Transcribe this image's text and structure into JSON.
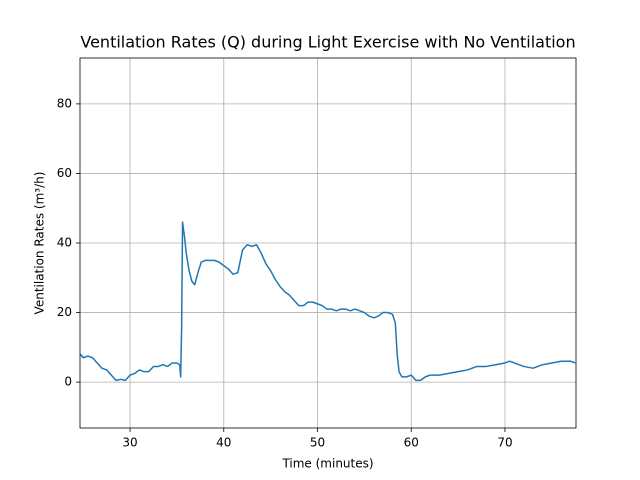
{
  "chart_data": {
    "type": "line",
    "title": "Ventilation Rates (Q) during Light Exercise with No Ventilation",
    "xlabel": "Time (minutes)",
    "ylabel": "Ventilation Rates (m³/h)",
    "x": [
      24.7,
      25,
      25.5,
      26,
      26.5,
      27,
      27.5,
      28,
      28.5,
      29,
      29.5,
      30,
      30.5,
      31,
      31.5,
      32,
      32.5,
      33,
      33.5,
      34,
      34.5,
      35,
      35.3,
      35.4,
      35.5,
      35.6,
      35.8,
      36,
      36.3,
      36.6,
      36.9,
      37.3,
      37.6,
      38,
      38.5,
      39,
      39.5,
      40,
      40.5,
      41,
      41.5,
      42,
      42.5,
      43,
      43.5,
      44,
      44.5,
      45,
      45.5,
      46,
      46.5,
      47,
      47.5,
      48,
      48.5,
      49,
      49.5,
      50,
      50.5,
      51,
      51.5,
      52,
      52.5,
      53,
      53.5,
      54,
      54.5,
      55,
      55.5,
      56,
      56.5,
      57,
      57.5,
      58,
      58.3,
      58.5,
      58.7,
      59,
      59.5,
      60,
      60.5,
      61,
      61.5,
      62,
      63,
      64,
      65,
      66,
      67,
      68,
      69,
      70,
      70.5,
      71,
      72,
      73,
      74,
      75,
      76,
      77,
      77.5
    ],
    "values": [
      8,
      7,
      7.5,
      7,
      5.5,
      4,
      3.5,
      2,
      0.5,
      0.8,
      0.5,
      2,
      2.5,
      3.5,
      3,
      3,
      4.5,
      4.5,
      5,
      4.5,
      5.5,
      5.5,
      5,
      1.5,
      15,
      46,
      42,
      37,
      32,
      29,
      28,
      32,
      34.5,
      35,
      35,
      35,
      34.5,
      33.5,
      32.5,
      31,
      31.5,
      38,
      39.5,
      39,
      39.5,
      37,
      34,
      32,
      29.5,
      27.5,
      26,
      25,
      23.5,
      22,
      22,
      23,
      23,
      22.5,
      22,
      21,
      21,
      20.5,
      21,
      21,
      20.5,
      21,
      20.5,
      20,
      19,
      18.5,
      19,
      20,
      20,
      19.5,
      17,
      8,
      3,
      1.5,
      1.5,
      2,
      0.5,
      0.5,
      1.5,
      2,
      2,
      2.5,
      3,
      3.5,
      4.5,
      4.5,
      5,
      5.5,
      6,
      5.5,
      4.5,
      4,
      5,
      5.5,
      6,
      6,
      5.5
    ],
    "color": "#1f77b4",
    "xlim": [
      24.66,
      77.58
    ],
    "ylim": [
      -13.2,
      93.2
    ],
    "xticks": [
      30,
      40,
      50,
      60,
      70
    ],
    "yticks": [
      0,
      20,
      40,
      60,
      80
    ],
    "grid": true
  }
}
